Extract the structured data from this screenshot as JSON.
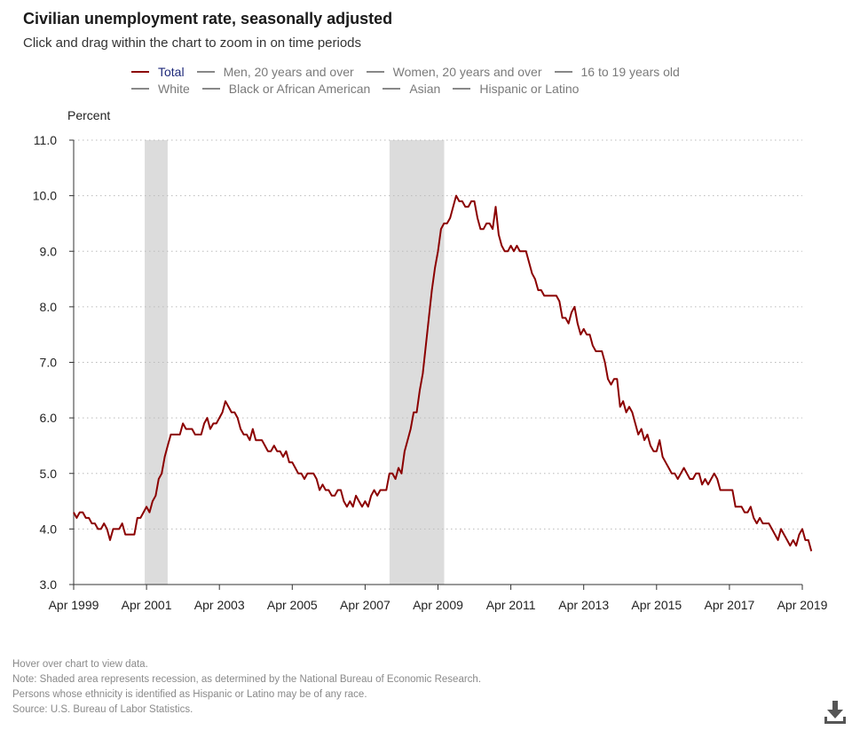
{
  "title": "Civilian unemployment rate, seasonally adjusted",
  "subtitle": "Click and drag within the chart to zoom in on time periods",
  "legend": {
    "row1": [
      "Total",
      "Men, 20 years and over",
      "Women, 20 years and over",
      "16 to 19 years old"
    ],
    "row2": [
      "White",
      "Black or African American",
      "Asian",
      "Hispanic or Latino"
    ]
  },
  "notes": [
    "Hover over chart to view data.",
    "Note: Shaded area represents recession, as determined by the National Bureau of Economic Research.",
    "Persons whose ethnicity is identified as Hispanic or Latino may be of any race.",
    "Source: U.S. Bureau of Labor Statistics."
  ],
  "colors": {
    "total": "#8b0000",
    "inactive": "#888888",
    "recession": "#dcdcdc",
    "grid": "#bbbbbb"
  },
  "icons": {
    "download": "download-icon"
  },
  "chart_data": {
    "type": "line",
    "ylabel": "Percent",
    "ylim": [
      3.0,
      11.0
    ],
    "yticks": [
      "3.0",
      "4.0",
      "5.0",
      "6.0",
      "7.0",
      "8.0",
      "9.0",
      "10.0",
      "11.0"
    ],
    "xrange": [
      1999.25,
      2019.25
    ],
    "xticks": [
      {
        "label": "Apr 1999",
        "value": 1999.25
      },
      {
        "label": "Apr 2001",
        "value": 2001.25
      },
      {
        "label": "Apr 2003",
        "value": 2003.25
      },
      {
        "label": "Apr 2005",
        "value": 2005.25
      },
      {
        "label": "Apr 2007",
        "value": 2007.25
      },
      {
        "label": "Apr 2009",
        "value": 2009.25
      },
      {
        "label": "Apr 2011",
        "value": 2011.25
      },
      {
        "label": "Apr 2013",
        "value": 2013.25
      },
      {
        "label": "Apr 2015",
        "value": 2015.25
      },
      {
        "label": "Apr 2017",
        "value": 2017.25
      },
      {
        "label": "Apr 2019",
        "value": 2019.25
      }
    ],
    "recessions": [
      [
        2001.2,
        2001.83
      ],
      [
        2007.92,
        2009.42
      ]
    ],
    "series": [
      {
        "name": "Total",
        "start": 1999.25,
        "step": 0.08333,
        "values": [
          4.3,
          4.2,
          4.3,
          4.3,
          4.2,
          4.2,
          4.1,
          4.1,
          4.0,
          4.0,
          4.1,
          4.0,
          3.8,
          4.0,
          4.0,
          4.0,
          4.1,
          3.9,
          3.9,
          3.9,
          3.9,
          4.2,
          4.2,
          4.3,
          4.4,
          4.3,
          4.5,
          4.6,
          4.9,
          5.0,
          5.3,
          5.5,
          5.7,
          5.7,
          5.7,
          5.7,
          5.9,
          5.8,
          5.8,
          5.8,
          5.7,
          5.7,
          5.7,
          5.9,
          6.0,
          5.8,
          5.9,
          5.9,
          6.0,
          6.1,
          6.3,
          6.2,
          6.1,
          6.1,
          6.0,
          5.8,
          5.7,
          5.7,
          5.6,
          5.8,
          5.6,
          5.6,
          5.6,
          5.5,
          5.4,
          5.4,
          5.5,
          5.4,
          5.4,
          5.3,
          5.4,
          5.2,
          5.2,
          5.1,
          5.0,
          5.0,
          4.9,
          5.0,
          5.0,
          5.0,
          4.9,
          4.7,
          4.8,
          4.7,
          4.7,
          4.6,
          4.6,
          4.7,
          4.7,
          4.5,
          4.4,
          4.5,
          4.4,
          4.6,
          4.5,
          4.4,
          4.5,
          4.4,
          4.6,
          4.7,
          4.6,
          4.7,
          4.7,
          4.7,
          5.0,
          5.0,
          4.9,
          5.1,
          5.0,
          5.4,
          5.6,
          5.8,
          6.1,
          6.1,
          6.5,
          6.8,
          7.3,
          7.8,
          8.3,
          8.7,
          9.0,
          9.4,
          9.5,
          9.5,
          9.6,
          9.8,
          10.0,
          9.9,
          9.9,
          9.8,
          9.8,
          9.9,
          9.9,
          9.6,
          9.4,
          9.4,
          9.5,
          9.5,
          9.4,
          9.8,
          9.3,
          9.1,
          9.0,
          9.0,
          9.1,
          9.0,
          9.1,
          9.0,
          9.0,
          9.0,
          8.8,
          8.6,
          8.5,
          8.3,
          8.3,
          8.2,
          8.2,
          8.2,
          8.2,
          8.2,
          8.1,
          7.8,
          7.8,
          7.7,
          7.9,
          8.0,
          7.7,
          7.5,
          7.6,
          7.5,
          7.5,
          7.3,
          7.2,
          7.2,
          7.2,
          7.0,
          6.7,
          6.6,
          6.7,
          6.7,
          6.2,
          6.3,
          6.1,
          6.2,
          6.1,
          5.9,
          5.7,
          5.8,
          5.6,
          5.7,
          5.5,
          5.4,
          5.4,
          5.6,
          5.3,
          5.2,
          5.1,
          5.0,
          5.0,
          4.9,
          5.0,
          5.1,
          5.0,
          4.9,
          4.9,
          5.0,
          5.0,
          4.8,
          4.9,
          4.8,
          4.9,
          5.0,
          4.9,
          4.7,
          4.7,
          4.7,
          4.7,
          4.7,
          4.4,
          4.4,
          4.4,
          4.3,
          4.3,
          4.4,
          4.2,
          4.1,
          4.2,
          4.1,
          4.1,
          4.1,
          4.0,
          3.9,
          3.8,
          4.0,
          3.9,
          3.8,
          3.7,
          3.8,
          3.7,
          3.9,
          4.0,
          3.8,
          3.8,
          3.6
        ]
      }
    ]
  }
}
